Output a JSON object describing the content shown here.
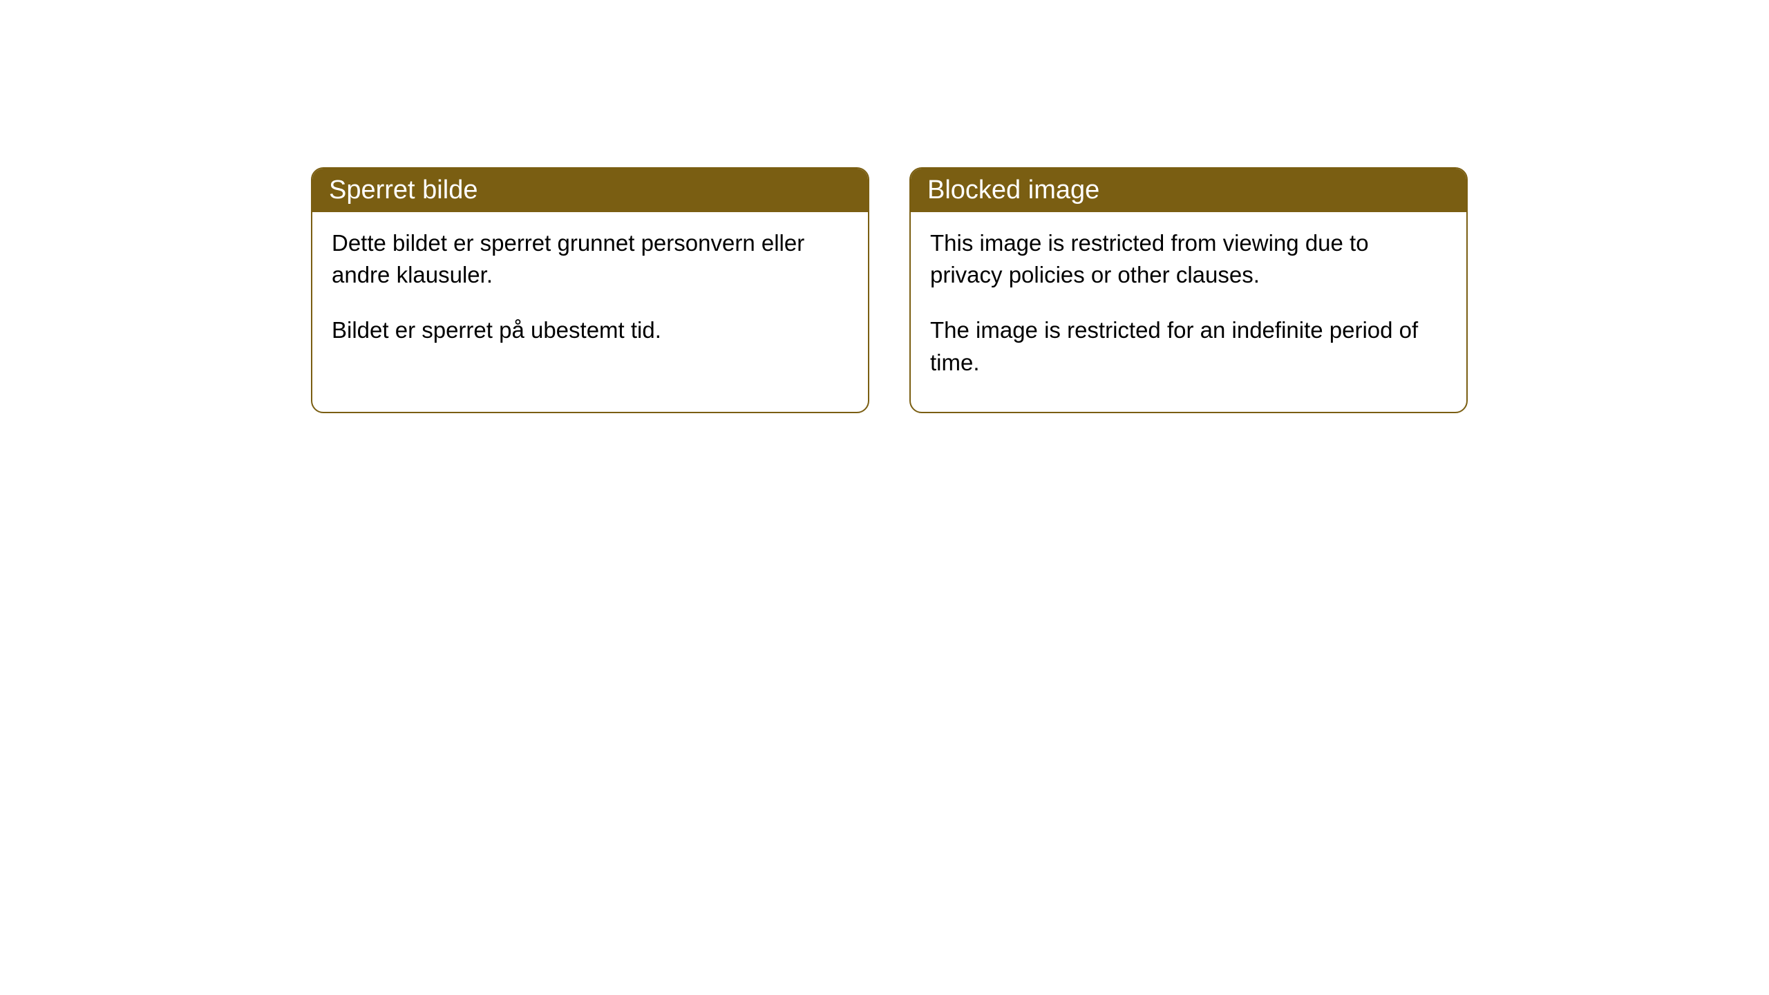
{
  "cards": [
    {
      "title": "Sperret bilde",
      "paragraph1": "Dette bildet er sperret grunnet personvern eller andre klausuler.",
      "paragraph2": "Bildet er sperret på ubestemt tid."
    },
    {
      "title": "Blocked image",
      "paragraph1": "This image is restricted from viewing due to privacy policies or other clauses.",
      "paragraph2": "The image is restricted for an indefinite period of time."
    }
  ],
  "style": {
    "header_background": "#7a5e12",
    "header_text_color": "#ffffff",
    "border_color": "#7a5e12",
    "body_background": "#ffffff",
    "body_text_color": "#000000",
    "border_radius": 18,
    "title_fontsize": 38,
    "body_fontsize": 33
  }
}
